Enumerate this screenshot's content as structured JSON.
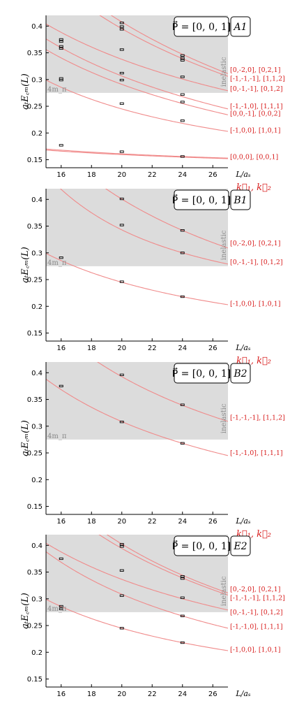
{
  "colors": {
    "curve": "#f08a8a",
    "label": "#d81e1e",
    "shade": "#dcdcdc",
    "threshold_text": "#888888"
  },
  "chart_data": [
    {
      "type": "line",
      "irrep": "A1",
      "momentum_label": "P⃗ = [0, 0, 1]",
      "ylabel": "aₜE꜀ₘ(L)",
      "xlabel": "L/aₛ",
      "k_label": "k⃗₁, k⃗₂",
      "threshold_label": "4m_π",
      "inelastic_label": "inelastic",
      "xlim": [
        15,
        27
      ],
      "ylim": [
        0.135,
        0.42
      ],
      "xticks": [
        16,
        18,
        20,
        22,
        24,
        26
      ],
      "yticks": [
        0.15,
        0.2,
        0.25,
        0.3,
        0.35,
        0.4
      ],
      "threshold": 0.275,
      "series": [
        {
          "name": "[0,-2,0], [0,2,1]",
          "values": [
            [
              15,
              0.515
            ],
            [
              24,
              0.347
            ],
            [
              27,
              0.311
            ]
          ],
          "label_y": 0.318
        },
        {
          "name": "[-1,-1,-1], [1,1,2]",
          "values": [
            [
              15,
              0.497
            ],
            [
              24,
              0.339
            ],
            [
              27,
              0.306
            ]
          ],
          "label_y": 0.302
        },
        {
          "name": "[0,-1,-1], [0,1,2]",
          "values": [
            [
              15,
              0.404
            ],
            [
              24,
              0.301
            ],
            [
              27,
              0.279
            ]
          ],
          "label_y": 0.283
        },
        {
          "name": "[-1,-1,0], [1,1,1]",
          "values": [
            [
              15,
              0.376
            ],
            [
              24,
              0.268
            ],
            [
              27,
              0.245
            ]
          ],
          "label_y": 0.25
        },
        {
          "name": "[0,0,-1], [0,0,2]",
          "values": [
            [
              15,
              0.356
            ],
            [
              24,
              0.255
            ],
            [
              27,
              0.234
            ]
          ],
          "label_y": 0.236
        },
        {
          "name": "[-1,0,0], [1,0,1]",
          "values": [
            [
              15,
              0.299
            ],
            [
              24,
              0.218
            ],
            [
              27,
              0.203
            ]
          ],
          "label_y": 0.205
        },
        {
          "name": "[0,0,0], [0,0,1]",
          "values": [
            [
              15,
              0.17
            ],
            [
              24,
              0.157
            ],
            [
              27,
              0.153
            ]
          ],
          "label_y": 0.155
        },
        {
          "name": "",
          "values": [
            [
              15,
              0.168
            ],
            [
              24,
              0.156
            ],
            [
              27,
              0.152
            ]
          ],
          "label_y": null
        }
      ],
      "points": [
        [
          16,
          0.375
        ],
        [
          16,
          0.371
        ],
        [
          16,
          0.362
        ],
        [
          16,
          0.358
        ],
        [
          16,
          0.302
        ],
        [
          16,
          0.299
        ],
        [
          16,
          0.177
        ],
        [
          20,
          0.406
        ],
        [
          20,
          0.399
        ],
        [
          20,
          0.394
        ],
        [
          20,
          0.356
        ],
        [
          20,
          0.312
        ],
        [
          20,
          0.299
        ],
        [
          20,
          0.255
        ],
        [
          20,
          0.165
        ],
        [
          24,
          0.345
        ],
        [
          24,
          0.34
        ],
        [
          24,
          0.336
        ],
        [
          24,
          0.305
        ],
        [
          24,
          0.272
        ],
        [
          24,
          0.258
        ],
        [
          24,
          0.223
        ],
        [
          24,
          0.156
        ]
      ]
    },
    {
      "type": "line",
      "irrep": "B1",
      "momentum_label": "P⃗ = [0, 0, 1]",
      "ylabel": "aₜE꜀ₘ(L)",
      "xlabel": "L/aₛ",
      "k_label": "k⃗₁, k⃗₂",
      "threshold_label": "4m_π",
      "inelastic_label": "inelastic",
      "xlim": [
        15,
        27
      ],
      "ylim": [
        0.135,
        0.42
      ],
      "xticks": [
        16,
        18,
        20,
        22,
        24,
        26
      ],
      "yticks": [
        0.15,
        0.2,
        0.25,
        0.3,
        0.35,
        0.4
      ],
      "threshold": 0.275,
      "series": [
        {
          "name": "[0,-2,0], [0,2,1]",
          "values": [
            [
              15,
              0.515
            ],
            [
              24,
              0.342
            ],
            [
              27,
              0.309
            ]
          ],
          "label_y": 0.318
        },
        {
          "name": "[0,-1,-1], [0,1,2]",
          "values": [
            [
              15,
              0.447
            ],
            [
              24,
              0.3
            ],
            [
              27,
              0.279
            ]
          ],
          "label_y": 0.283
        },
        {
          "name": "[-1,0,0], [1,0,1]",
          "values": [
            [
              15,
              0.299
            ],
            [
              24,
              0.218
            ],
            [
              27,
              0.203
            ]
          ],
          "label_y": 0.205
        }
      ],
      "points": [
        [
          16,
          0.291
        ],
        [
          20,
          0.401
        ],
        [
          20,
          0.352
        ],
        [
          20,
          0.246
        ],
        [
          24,
          0.342
        ],
        [
          24,
          0.3
        ],
        [
          24,
          0.218
        ]
      ]
    },
    {
      "type": "line",
      "irrep": "B2",
      "momentum_label": "P⃗ = [0, 0, 1]",
      "ylabel": "aₜE꜀ₘ(L)",
      "xlabel": "L/aₛ",
      "k_label": "k⃗₁, k⃗₂",
      "threshold_label": "4m_π",
      "inelastic_label": "inelastic",
      "xlim": [
        15,
        27
      ],
      "ylim": [
        0.135,
        0.42
      ],
      "xticks": [
        16,
        18,
        20,
        22,
        24,
        26
      ],
      "yticks": [
        0.15,
        0.2,
        0.25,
        0.3,
        0.35,
        0.4
      ],
      "threshold": 0.275,
      "series": [
        {
          "name": "[-1,-1,-1], [1,1,2]",
          "values": [
            [
              15,
              0.497
            ],
            [
              24,
              0.339
            ],
            [
              27,
              0.309
            ]
          ],
          "label_y": 0.316
        },
        {
          "name": "[-1,-1,0], [1,1,1]",
          "values": [
            [
              15,
              0.388
            ],
            [
              24,
              0.268
            ],
            [
              27,
              0.245
            ]
          ],
          "label_y": 0.25
        }
      ],
      "points": [
        [
          16,
          0.375
        ],
        [
          20,
          0.396
        ],
        [
          20,
          0.308
        ],
        [
          24,
          0.34
        ],
        [
          24,
          0.268
        ]
      ]
    },
    {
      "type": "line",
      "irrep": "E2",
      "momentum_label": "P⃗ = [0, 0, 1]",
      "ylabel": "aₜE꜀ₘ(L)",
      "xlabel": "L/aₛ",
      "k_label": "k⃗₁, k⃗₂",
      "threshold_label": "4m_π",
      "inelastic_label": "inelastic",
      "xlim": [
        15,
        27
      ],
      "ylim": [
        0.135,
        0.42
      ],
      "xticks": [
        16,
        18,
        20,
        22,
        24,
        26
      ],
      "yticks": [
        0.15,
        0.2,
        0.25,
        0.3,
        0.35,
        0.4
      ],
      "threshold": 0.275,
      "series": [
        {
          "name": "[0,-2,0], [0,2,1]",
          "values": [
            [
              15,
              0.515
            ],
            [
              24,
              0.344
            ],
            [
              27,
              0.311
            ]
          ],
          "label_y": 0.318
        },
        {
          "name": "[-1,-1,-1], [1,1,2]",
          "values": [
            [
              15,
              0.497
            ],
            [
              24,
              0.339
            ],
            [
              27,
              0.307
            ]
          ],
          "label_y": 0.302
        },
        {
          "name": "[0,-1,-1], [0,1,2]",
          "values": [
            [
              15,
              0.404
            ],
            [
              24,
              0.3
            ],
            [
              27,
              0.279
            ]
          ],
          "label_y": 0.275
        },
        {
          "name": "[-1,-1,0], [1,1,1]",
          "values": [
            [
              15,
              0.388
            ],
            [
              24,
              0.268
            ],
            [
              27,
              0.245
            ]
          ],
          "label_y": 0.248
        },
        {
          "name": "[-1,0,0], [1,0,1]",
          "values": [
            [
              15,
              0.299
            ],
            [
              24,
              0.218
            ],
            [
              27,
              0.203
            ]
          ],
          "label_y": 0.205
        }
      ],
      "points": [
        [
          16,
          0.375
        ],
        [
          16,
          0.286
        ],
        [
          16,
          0.281
        ],
        [
          20,
          0.402
        ],
        [
          20,
          0.398
        ],
        [
          20,
          0.353
        ],
        [
          20,
          0.306
        ],
        [
          20,
          0.245
        ],
        [
          24,
          0.342
        ],
        [
          24,
          0.338
        ],
        [
          24,
          0.302
        ],
        [
          24,
          0.268
        ],
        [
          24,
          0.218
        ]
      ]
    }
  ]
}
